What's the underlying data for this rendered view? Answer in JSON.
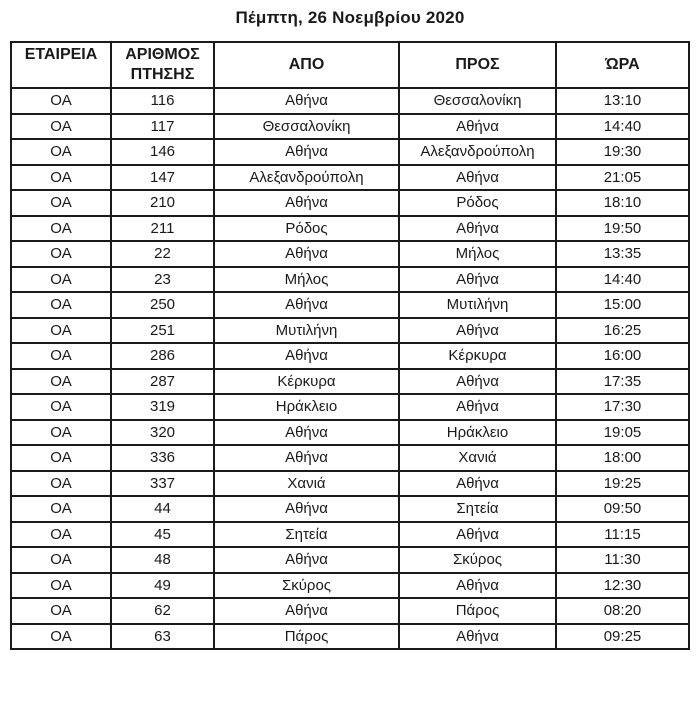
{
  "title": "Πέμπτη, 26 Νοεμβρίου 2020",
  "colors": {
    "background": "#ffffff",
    "border": "#1a1a1a",
    "text": "#1a1a1a"
  },
  "table": {
    "headers": [
      "ΕΤΑΙΡΕΙΑ",
      "ΑΡΙΘΜΟΣ ΠΤΗΣΗΣ",
      "ΑΠΟ",
      "ΠΡΟΣ",
      "ΏΡΑ"
    ],
    "rows": [
      [
        "ΟΑ",
        "116",
        "Αθήνα",
        "Θεσσαλονίκη",
        "13:10"
      ],
      [
        "ΟΑ",
        "117",
        "Θεσσαλονίκη",
        "Αθήνα",
        "14:40"
      ],
      [
        "ΟΑ",
        "146",
        "Αθήνα",
        "Αλεξανδρούπολη",
        "19:30"
      ],
      [
        "ΟΑ",
        "147",
        "Αλεξανδρούπολη",
        "Αθήνα",
        "21:05"
      ],
      [
        "ΟΑ",
        "210",
        "Αθήνα",
        "Ρόδος",
        "18:10"
      ],
      [
        "ΟΑ",
        "211",
        "Ρόδος",
        "Αθήνα",
        "19:50"
      ],
      [
        "ΟΑ",
        "22",
        "Αθήνα",
        "Μήλος",
        "13:35"
      ],
      [
        "ΟΑ",
        "23",
        "Μήλος",
        "Αθήνα",
        "14:40"
      ],
      [
        "ΟΑ",
        "250",
        "Αθήνα",
        "Μυτιλήνη",
        "15:00"
      ],
      [
        "ΟΑ",
        "251",
        "Μυτιλήνη",
        "Αθήνα",
        "16:25"
      ],
      [
        "ΟΑ",
        "286",
        "Αθήνα",
        "Κέρκυρα",
        "16:00"
      ],
      [
        "ΟΑ",
        "287",
        "Κέρκυρα",
        "Αθήνα",
        "17:35"
      ],
      [
        "ΟΑ",
        "319",
        "Ηράκλειο",
        "Αθήνα",
        "17:30"
      ],
      [
        "ΟΑ",
        "320",
        "Αθήνα",
        "Ηράκλειο",
        "19:05"
      ],
      [
        "ΟΑ",
        "336",
        "Αθήνα",
        "Χανιά",
        "18:00"
      ],
      [
        "ΟΑ",
        "337",
        "Χανιά",
        "Αθήνα",
        "19:25"
      ],
      [
        "ΟΑ",
        "44",
        "Αθήνα",
        "Σητεία",
        "09:50"
      ],
      [
        "ΟΑ",
        "45",
        "Σητεία",
        "Αθήνα",
        "11:15"
      ],
      [
        "ΟΑ",
        "48",
        "Αθήνα",
        "Σκύρος",
        "11:30"
      ],
      [
        "ΟΑ",
        "49",
        "Σκύρος",
        "Αθήνα",
        "12:30"
      ],
      [
        "ΟΑ",
        "62",
        "Αθήνα",
        "Πάρος",
        "08:20"
      ],
      [
        "ΟΑ",
        "63",
        "Πάρος",
        "Αθήνα",
        "09:25"
      ]
    ]
  }
}
